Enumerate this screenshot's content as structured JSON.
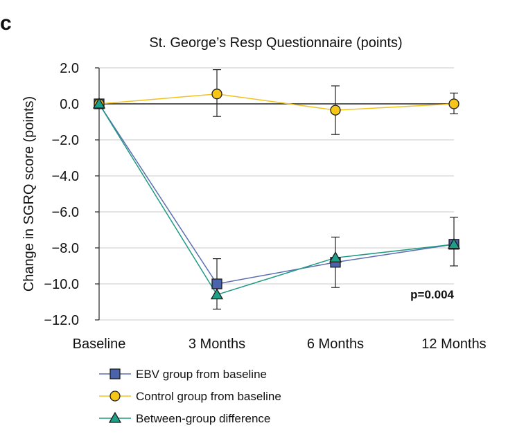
{
  "panel_label": "c",
  "chart_data": {
    "type": "line",
    "title": "St. George’s Resp Questionnaire (points)",
    "ylabel": "Change in SGRQ score (points)",
    "xlabel": "",
    "categories": [
      "Baseline",
      "3 Months",
      "6 Months",
      "12 Months"
    ],
    "ylim": [
      -12,
      2
    ],
    "yticks": [
      "2.0",
      "0.0",
      "−2.0",
      "−4.0",
      "−6.0",
      "−8.0",
      "−10.0",
      "−12.0"
    ],
    "grid": true,
    "annotation": "p=0.004",
    "legend_position": "bottom",
    "series": [
      {
        "name": "EBV group from baseline",
        "marker": "square",
        "line_color": "#5b6fb0",
        "marker_color": "#4a63aa",
        "values": [
          0,
          -10.0,
          -8.8,
          -7.8
        ],
        "error_low": [
          null,
          -11.4,
          -10.2,
          -9.0
        ],
        "error_high": [
          null,
          -8.6,
          -7.4,
          -6.3
        ]
      },
      {
        "name": "Control group from baseline",
        "marker": "circle",
        "line_color": "#f2c21c",
        "marker_color": "#f5c518",
        "values": [
          0,
          0.55,
          -0.35,
          0
        ],
        "error_low": [
          null,
          -0.7,
          -1.7,
          -0.55
        ],
        "error_high": [
          null,
          1.9,
          1.0,
          0.6
        ]
      },
      {
        "name": "Between-group difference",
        "marker": "triangle",
        "line_color": "#1f9a84",
        "marker_color": "#1ea088",
        "values": [
          0,
          -10.6,
          -8.55,
          -7.8
        ],
        "error_low": [
          null,
          null,
          null,
          null
        ],
        "error_high": [
          null,
          null,
          null,
          null
        ]
      }
    ]
  }
}
